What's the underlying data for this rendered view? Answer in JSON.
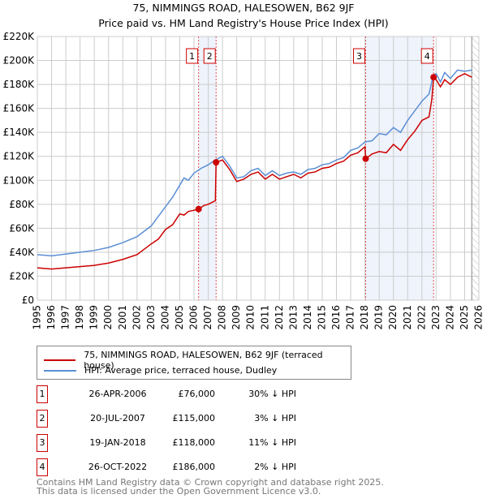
{
  "chart_data": {
    "type": "line",
    "title": "75, NIMMINGS ROAD, HALESOWEN, B62 9JF",
    "subtitle": "Price paid vs. HM Land Registry's House Price Index (HPI)",
    "xlim": [
      1995,
      2026
    ],
    "ylim": [
      0,
      220000
    ],
    "yticks": [
      0,
      20000,
      40000,
      60000,
      80000,
      100000,
      120000,
      140000,
      160000,
      180000,
      200000,
      220000
    ],
    "ytick_labels": [
      "£0",
      "£20K",
      "£40K",
      "£60K",
      "£80K",
      "£100K",
      "£120K",
      "£140K",
      "£160K",
      "£180K",
      "£200K",
      "£220K"
    ],
    "xticks": [
      1995,
      1996,
      1997,
      1998,
      1999,
      2000,
      2001,
      2002,
      2003,
      2004,
      2005,
      2006,
      2007,
      2008,
      2009,
      2010,
      2011,
      2012,
      2013,
      2014,
      2015,
      2016,
      2017,
      2018,
      2019,
      2020,
      2021,
      2022,
      2023,
      2024,
      2025,
      2026
    ],
    "grid": true,
    "forecast_hatch_from": 2025.5,
    "shaded_ranges": [
      [
        2006.32,
        2007.55
      ],
      [
        2018.05,
        2022.82
      ]
    ],
    "series": [
      {
        "name": "75, NIMMINGS ROAD, HALESOWEN, B62 9JF (terraced house)",
        "color": "#cc0000",
        "x": [
          1995,
          1996,
          1997,
          1998,
          1999,
          2000,
          2001,
          2002,
          2003,
          2003.5,
          2004,
          2004.5,
          2005,
          2005.3,
          2005.6,
          2006,
          2006.32,
          2006.7,
          2007,
          2007.5,
          2007.55,
          2008,
          2008.5,
          2009,
          2009.5,
          2010,
          2010.5,
          2011,
          2011.5,
          2012,
          2012.5,
          2013,
          2013.5,
          2014,
          2014.5,
          2015,
          2015.5,
          2016,
          2016.5,
          2017,
          2017.5,
          2018,
          2018.05,
          2018.5,
          2019,
          2019.5,
          2020,
          2020.5,
          2021,
          2021.5,
          2022,
          2022.5,
          2022.7,
          2022.82,
          2023,
          2023.3,
          2023.6,
          2024,
          2024.5,
          2025,
          2025.5
        ],
        "y": [
          27000,
          26000,
          27000,
          28000,
          29000,
          31000,
          34000,
          38000,
          47000,
          51000,
          59000,
          63000,
          72000,
          71000,
          74000,
          75000,
          76000,
          79000,
          80000,
          83000,
          115000,
          117000,
          109000,
          99000,
          101000,
          105000,
          107000,
          101000,
          105000,
          101000,
          103000,
          105000,
          102000,
          106000,
          107000,
          110000,
          111000,
          114000,
          116000,
          121000,
          123000,
          128000,
          118000,
          122000,
          124000,
          123000,
          130000,
          125000,
          134000,
          141000,
          150000,
          153000,
          168000,
          186000,
          184000,
          178000,
          184000,
          180000,
          186000,
          189000,
          186000
        ]
      },
      {
        "name": "HPI: Average price, terraced house, Dudley",
        "color": "#5b8fd6",
        "x": [
          1995,
          1996,
          1997,
          1998,
          1999,
          2000,
          2001,
          2002,
          2003,
          2003.5,
          2004,
          2004.5,
          2005,
          2005.3,
          2005.6,
          2006,
          2006.5,
          2007,
          2007.5,
          2008,
          2008.5,
          2009,
          2009.5,
          2010,
          2010.5,
          2011,
          2011.5,
          2012,
          2012.5,
          2013,
          2013.5,
          2014,
          2014.5,
          2015,
          2015.5,
          2016,
          2016.5,
          2017,
          2017.5,
          2018,
          2018.5,
          2019,
          2019.5,
          2020,
          2020.5,
          2021,
          2021.5,
          2022,
          2022.5,
          2022.8,
          2023,
          2023.3,
          2023.6,
          2024,
          2024.5,
          2025,
          2025.5
        ],
        "y": [
          38000,
          37000,
          38500,
          40000,
          41500,
          44000,
          48000,
          53000,
          62000,
          70000,
          78000,
          86000,
          96000,
          102000,
          100000,
          106000,
          110000,
          113000,
          117000,
          120000,
          112000,
          102000,
          103000,
          108000,
          110000,
          104000,
          108000,
          104000,
          106000,
          107000,
          105000,
          109000,
          110000,
          113000,
          114000,
          117000,
          119000,
          125000,
          127000,
          132000,
          133000,
          139000,
          138000,
          144000,
          140000,
          150000,
          158000,
          166000,
          172000,
          188000,
          189000,
          182000,
          190000,
          185000,
          192000,
          191000,
          192000
        ]
      }
    ],
    "annotations": [
      {
        "label": "1",
        "x": 2006.32,
        "y": 76000
      },
      {
        "label": "2",
        "x": 2007.55,
        "y": 115000
      },
      {
        "label": "3",
        "x": 2018.05,
        "y": 118000
      },
      {
        "label": "4",
        "x": 2022.82,
        "y": 186000
      }
    ]
  },
  "legend": {
    "items": [
      "75, NIMMINGS ROAD, HALESOWEN, B62 9JF (terraced house)",
      "HPI: Average price, terraced house, Dudley"
    ]
  },
  "sales": [
    {
      "num": "1",
      "date": "26-APR-2006",
      "price": "£76,000",
      "hpi": "30% ↓ HPI"
    },
    {
      "num": "2",
      "date": "20-JUL-2007",
      "price": "£115,000",
      "hpi": "3% ↓ HPI"
    },
    {
      "num": "3",
      "date": "19-JAN-2018",
      "price": "£118,000",
      "hpi": "11% ↓ HPI"
    },
    {
      "num": "4",
      "date": "26-OCT-2022",
      "price": "£186,000",
      "hpi": "2% ↓ HPI"
    }
  ],
  "footer": {
    "line1": "Contains HM Land Registry data © Crown copyright and database right 2025.",
    "line2": "This data is licensed under the Open Government Licence v3.0."
  }
}
